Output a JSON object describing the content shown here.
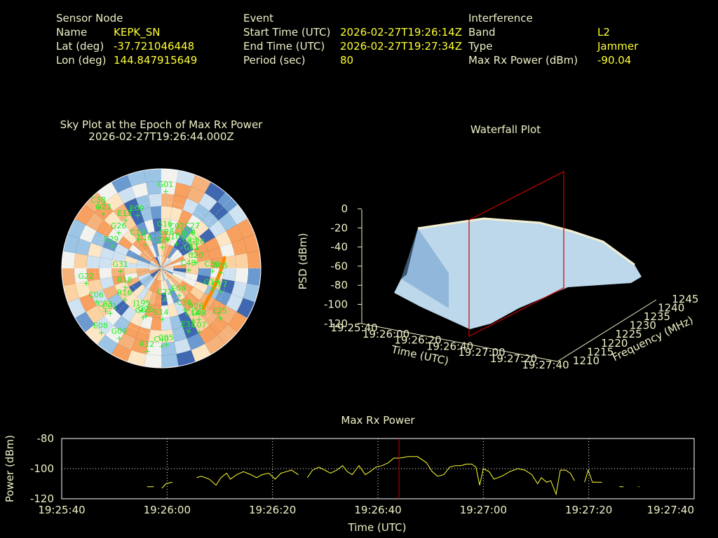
{
  "header": {
    "sensor": {
      "title": "Sensor Node",
      "name_label": "Name",
      "name": "KEPK_SN",
      "lat_label": "Lat (deg)",
      "lat": "-37.721046448",
      "lon_label": "Lon (deg)",
      "lon": "144.847915649"
    },
    "event": {
      "title": "Event",
      "start_label": "Start Time (UTC)",
      "start": "2026-02-27T19:26:14Z",
      "end_label": "End Time (UTC)",
      "end": "2026-02-27T19:27:34Z",
      "period_label": "Period (sec)",
      "period": "80"
    },
    "interference": {
      "title": "Interference",
      "band_label": "Band",
      "band": "L2",
      "type_label": "Type",
      "type": "Jammer",
      "power_label": "Max Rx Power (dBm)",
      "power": "-90.04"
    }
  },
  "chart_data": [
    {
      "type": "scatter",
      "title": "Sky Plot at the Epoch of Max Rx Power",
      "subtitle": "2026-02-27T19:26:44.000Z",
      "colors": {
        "label": "#22ee22",
        "track": "#ff8800",
        "warm": "#f59a55",
        "cool": "#3a66b0"
      },
      "satellites": [
        "C19",
        "C22",
        "J195",
        "C16",
        "C08",
        "E08",
        "C06",
        "C48",
        "E04",
        "E09",
        "C38",
        "C36",
        "C03",
        "C02",
        "G09",
        "G05",
        "G26",
        "E33",
        "G23",
        "C09",
        "C17",
        "C11",
        "G01",
        "C01",
        "E29",
        "E25",
        "C27",
        "J106",
        "C30",
        "C20",
        "C13",
        "C05",
        "C40",
        "E13",
        "C07",
        "E14",
        "R12",
        "G26",
        "R18",
        "R16",
        "G18",
        "C28",
        "R05",
        "R08",
        "R26",
        "G22",
        "C14",
        "G16",
        "G31",
        "G25"
      ]
    },
    {
      "type": "area",
      "title": "Waterfall Plot",
      "zlabel": "PSD (dBm)",
      "xlabel": "Time (UTC)",
      "ylabel": "Frequency (MHz)",
      "zticks": [
        "0",
        "-20",
        "-40",
        "-60",
        "-80",
        "-100",
        "-120"
      ],
      "xticks": [
        "19:25:40",
        "19:26:00",
        "19:26:20",
        "19:26:40",
        "19:27:00",
        "19:27:20",
        "19:27:40"
      ],
      "yticks": [
        "1210",
        "1215",
        "1220",
        "1225",
        "1230",
        "1235",
        "1240",
        "1245"
      ],
      "zlim": [
        -120,
        0
      ],
      "ylim": [
        1210,
        1245
      ],
      "surface_color": "#bcd8ea",
      "marker_color": "#cc0000"
    },
    {
      "type": "line",
      "title": "Max Rx Power",
      "xlabel": "Time (UTC)",
      "ylabel": "Power (dBm)",
      "xticks": [
        "19:25:40",
        "19:26:00",
        "19:26:20",
        "19:26:40",
        "19:27:00",
        "19:27:20",
        "19:27:40"
      ],
      "yticks": [
        "-80",
        "-100",
        "-120"
      ],
      "xlim_sec": [
        0,
        120
      ],
      "ylim": [
        -120,
        -80
      ],
      "marker_sec": 64,
      "line_color": "#ffff33",
      "marker_color": "#cc0000",
      "segments": [
        [
          [
            16.2,
            -112
          ],
          [
            17.5,
            -112
          ]
        ],
        [
          [
            19.0,
            -113
          ],
          [
            19.8,
            -110
          ],
          [
            21.0,
            -109
          ]
        ],
        [
          [
            25.6,
            -106
          ],
          [
            26.5,
            -105
          ],
          [
            28.0,
            -107
          ],
          [
            29.3,
            -111
          ],
          [
            30.2,
            -106
          ],
          [
            31.3,
            -103
          ],
          [
            32.0,
            -107
          ],
          [
            33.2,
            -104
          ],
          [
            34.5,
            -102
          ],
          [
            35.9,
            -104
          ],
          [
            37.0,
            -106
          ],
          [
            38.0,
            -104
          ],
          [
            39.3,
            -103
          ],
          [
            40.5,
            -107
          ],
          [
            41.6,
            -103
          ],
          [
            42.6,
            -102
          ],
          [
            43.6,
            -101
          ],
          [
            44.9,
            -104
          ]
        ],
        [
          [
            46.6,
            -106
          ],
          [
            47.6,
            -101
          ],
          [
            48.8,
            -99
          ],
          [
            49.9,
            -101
          ],
          [
            51.0,
            -103
          ],
          [
            52.2,
            -101
          ],
          [
            53.3,
            -98
          ],
          [
            54.2,
            -102
          ],
          [
            55.1,
            -104
          ],
          [
            56.4,
            -98
          ],
          [
            57.6,
            -104
          ],
          [
            58.5,
            -102
          ],
          [
            59.6,
            -99
          ],
          [
            60.8,
            -98
          ],
          [
            62.0,
            -96
          ],
          [
            63.0,
            -93
          ],
          [
            64.1,
            -93
          ],
          [
            65.7,
            -92
          ],
          [
            67.5,
            -92
          ],
          [
            69.2,
            -96
          ],
          [
            70.3,
            -102
          ],
          [
            71.3,
            -105
          ],
          [
            72.5,
            -104
          ],
          [
            73.6,
            -99
          ],
          [
            74.7,
            -98
          ],
          [
            75.7,
            -98
          ],
          [
            76.8,
            -97
          ],
          [
            77.8,
            -97
          ],
          [
            78.6,
            -99
          ],
          [
            79.3,
            -111
          ],
          [
            80.0,
            -100
          ],
          [
            81.1,
            -102
          ],
          [
            82.0,
            -107
          ],
          [
            83.5,
            -105
          ],
          [
            85.0,
            -102
          ],
          [
            86.5,
            -100
          ],
          [
            87.9,
            -101
          ],
          [
            89.2,
            -104
          ],
          [
            90.3,
            -110
          ],
          [
            91.0,
            -106
          ],
          [
            92.0,
            -109
          ],
          [
            92.8,
            -108
          ],
          [
            93.8,
            -117
          ],
          [
            94.6,
            -101
          ],
          [
            95.6,
            -101
          ],
          [
            96.5,
            -103
          ],
          [
            97.3,
            -108
          ]
        ],
        [
          [
            99.2,
            -109
          ],
          [
            99.9,
            -101
          ],
          [
            100.7,
            -109
          ],
          [
            102.5,
            -109
          ]
        ],
        [
          [
            105.8,
            -112
          ],
          [
            106.6,
            -112
          ]
        ],
        [
          [
            109.4,
            -112
          ],
          [
            109.6,
            -112
          ]
        ]
      ]
    }
  ]
}
